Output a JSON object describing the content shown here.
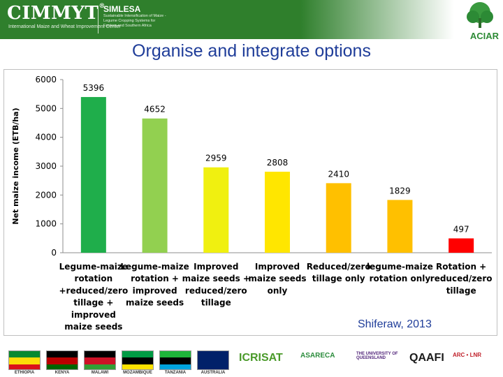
{
  "header": {
    "logo_main": "CIMMYT",
    "logo_tm": "®",
    "logo_sub": "International Maize and Wheat Improvement Center",
    "program": "SIMLESA",
    "program_desc": "Sustainable Intensification of Maize - Legume Cropping Systems for Eastern and Southern Africa",
    "partner_logo": "ACIAR",
    "brand_color": "#2f7f2c"
  },
  "title": "Organise and integrate options",
  "credit": "Shiferaw, 2013",
  "chart_data": {
    "type": "bar",
    "ylabel": "Net maize income (ETB/ha)",
    "ylim": [
      0,
      6000
    ],
    "yticks": [
      0,
      1000,
      2000,
      3000,
      4000,
      5000,
      6000
    ],
    "grid": false,
    "legend": "none",
    "categories": [
      [
        "Legume-maize",
        "rotation",
        "+reduced/zero",
        "tillage +",
        "improved",
        "maize seeds"
      ],
      [
        "Legume-maize",
        "rotation +",
        "improved",
        "maize seeds"
      ],
      [
        "Improved",
        "maize seeds +",
        "reduced/zero",
        "tillage"
      ],
      [
        "Improved",
        "maize seeds",
        "only"
      ],
      [
        "Reduced/zero",
        "tillage only"
      ],
      [
        "legume-maize",
        "rotation only"
      ],
      [
        "Rotation +",
        "reduced/zero",
        "tillage"
      ]
    ],
    "values": [
      5396,
      4652,
      2959,
      2808,
      2410,
      1829,
      497
    ],
    "colors": [
      "#1fae4b",
      "#92d050",
      "#f0f010",
      "#ffe600",
      "#ffc000",
      "#ffc000",
      "#ff0000"
    ]
  },
  "footer": {
    "flags": [
      {
        "label": "ETHIOPIA",
        "colors": [
          "#078930",
          "#fcdd09",
          "#da121a"
        ]
      },
      {
        "label": "KENYA",
        "colors": [
          "#000000",
          "#bb0000",
          "#006600"
        ]
      },
      {
        "label": "MALAWI",
        "colors": [
          "#000000",
          "#ce1126",
          "#339e35"
        ]
      },
      {
        "label": "MOZAMBIQUE",
        "colors": [
          "#009a44",
          "#000000",
          "#fce100"
        ]
      },
      {
        "label": "TANZANIA",
        "colors": [
          "#1eb53a",
          "#000000",
          "#00a3dd"
        ]
      },
      {
        "label": "AUSTRALIA",
        "colors": [
          "#012169",
          "#012169",
          "#012169"
        ]
      }
    ],
    "orgs": [
      {
        "name": "ICRISAT",
        "color": "#4a9a2a"
      },
      {
        "name": "ASARECA",
        "color": "#2b8c3c"
      },
      {
        "name": "THE UNIVERSITY OF QUEENSLAND",
        "color": "#51247a"
      },
      {
        "name": "QAAFI",
        "color": "#1a1a1a"
      },
      {
        "name": "ARC • LNR",
        "color": "#c0202a"
      }
    ]
  }
}
